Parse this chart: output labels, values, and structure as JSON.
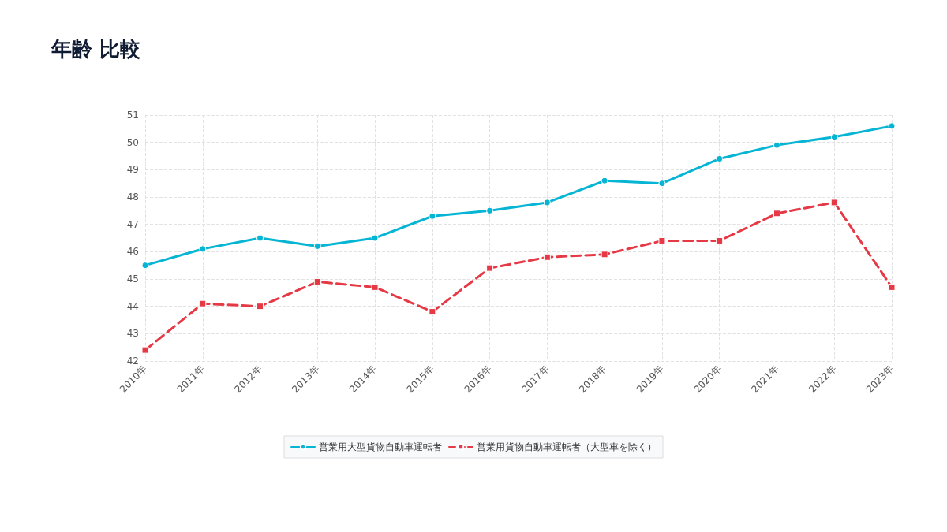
{
  "chart_data": {
    "type": "line",
    "title": "年齢 比較",
    "categories": [
      "2010年",
      "2011年",
      "2012年",
      "2013年",
      "2014年",
      "2015年",
      "2016年",
      "2017年",
      "2018年",
      "2019年",
      "2020年",
      "2021年",
      "2022年",
      "2023年"
    ],
    "series": [
      {
        "name": "営業用大型貨物自動車運転者",
        "color": "#06b4d4",
        "marker": "circle",
        "line_style": "solid",
        "values": [
          45.5,
          46.1,
          46.5,
          46.2,
          46.5,
          47.3,
          47.5,
          47.8,
          48.6,
          48.5,
          49.4,
          49.9,
          50.2,
          50.6
        ]
      },
      {
        "name": "営業用貨物自動車運転者（大型車を除く）",
        "color": "#e63946",
        "marker": "square",
        "line_style": "dashed",
        "values": [
          42.4,
          44.1,
          44.0,
          44.9,
          44.7,
          43.8,
          45.4,
          45.8,
          45.9,
          46.4,
          46.4,
          47.4,
          47.8,
          44.7
        ]
      }
    ],
    "ylim": [
      42,
      51
    ],
    "yticks": [
      42,
      43,
      44,
      45,
      46,
      47,
      48,
      49,
      50,
      51
    ],
    "grid": true,
    "legend": "bottom"
  }
}
